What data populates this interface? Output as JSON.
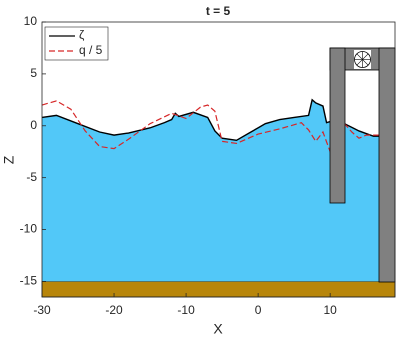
{
  "chart_data": {
    "type": "line",
    "title": "t = 5",
    "x_label": "X",
    "y_label": "Z",
    "xlim": [
      -30,
      19
    ],
    "ylim": [
      -16.5,
      10
    ],
    "xticks": [
      -30,
      -20,
      -10,
      0,
      10
    ],
    "yticks": [
      -15,
      -10,
      -5,
      0,
      5,
      10
    ],
    "seabed": -15,
    "water_color": "#52c8f8",
    "seabed_color": "#b8860b",
    "legend": "upper left",
    "series": [
      {
        "name": "ζ",
        "color": "#000000",
        "dash": false,
        "x": [
          -30,
          -28,
          -25,
          -22,
          -20,
          -18,
          -15,
          -13,
          -12,
          -11.5,
          -11,
          -9,
          -7,
          -6,
          -5,
          -3,
          -1,
          1,
          3,
          5,
          7,
          7.5,
          8,
          9,
          9.5,
          10,
          11,
          12,
          14,
          16,
          17
        ],
        "values": [
          0.8,
          1.0,
          0.2,
          -0.6,
          -0.9,
          -0.7,
          -0.2,
          0.3,
          0.6,
          1.2,
          0.9,
          1.3,
          0.8,
          -0.5,
          -1.2,
          -1.4,
          -0.6,
          0.2,
          0.6,
          0.8,
          1.0,
          2.5,
          2.2,
          1.9,
          0.3,
          0.4,
          0.5,
          0.2,
          -0.5,
          -1.0,
          -1.0
        ]
      },
      {
        "name": "q / 5",
        "color": "#d62728",
        "dash": true,
        "x": [
          -30,
          -28,
          -26,
          -24,
          -22,
          -20,
          -18,
          -15,
          -12,
          -10,
          -8,
          -7,
          -6,
          -5,
          -3,
          0,
          3,
          6,
          7,
          8,
          9,
          10,
          11,
          12,
          13,
          14,
          15,
          17
        ],
        "values": [
          2.0,
          2.4,
          1.6,
          -0.5,
          -2.0,
          -2.2,
          -1.3,
          0.2,
          1.2,
          0.7,
          1.8,
          2.0,
          1.4,
          -1.5,
          -1.7,
          -0.8,
          -0.3,
          0.3,
          -0.4,
          -1.5,
          -0.6,
          -2.5,
          -0.4,
          0.2,
          -0.6,
          -1.2,
          -0.9,
          -0.9
        ]
      }
    ]
  }
}
